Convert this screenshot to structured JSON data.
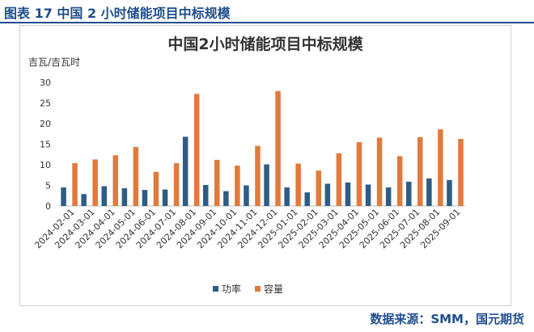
{
  "figure": {
    "title": "图表 17 中国 2 小时储能项目中标规模",
    "source": "数据来源：SMM，国元期货"
  },
  "colors": {
    "brand": "#1f4e8c",
    "power": "#2e5c84",
    "capacity": "#e17a3b"
  },
  "chart_data": {
    "type": "bar",
    "title": "中国2小时储能项目中标规模",
    "ylabel": "吉瓦/吉瓦时",
    "xlabel": "",
    "ylim": [
      0,
      30
    ],
    "yticks": [
      0,
      5,
      10,
      15,
      20,
      25,
      30
    ],
    "grid": false,
    "legend": "bottom",
    "categories": [
      "2024-02-01",
      "2024-03-01",
      "2024-04-01",
      "2024-05-01",
      "2024-06-01",
      "2024-07-01",
      "2024-08-01",
      "2024-09-01",
      "2024-10-01",
      "2024-11-01",
      "2024-12-01",
      "2025-01-01",
      "2025-02-01",
      "2025-03-01",
      "2025-04-01",
      "2025-05-01",
      "2025-06-01",
      "2025-07-01",
      "2025-08-01",
      "2025-09-01"
    ],
    "series": [
      {
        "name": "功率",
        "color": "#2e5c84",
        "values": [
          4.5,
          2.9,
          4.8,
          4.3,
          3.9,
          4.0,
          16.8,
          5.1,
          3.6,
          5.0,
          10.1,
          4.5,
          3.3,
          5.4,
          5.7,
          5.2,
          4.5,
          5.9,
          6.7,
          6.3
        ]
      },
      {
        "name": "容量",
        "color": "#e17a3b",
        "values": [
          10.4,
          11.3,
          12.3,
          14.3,
          8.3,
          10.4,
          27.2,
          11.2,
          9.8,
          14.6,
          27.9,
          10.3,
          8.6,
          12.8,
          15.5,
          16.6,
          12.1,
          16.7,
          18.6,
          16.3
        ]
      }
    ]
  }
}
